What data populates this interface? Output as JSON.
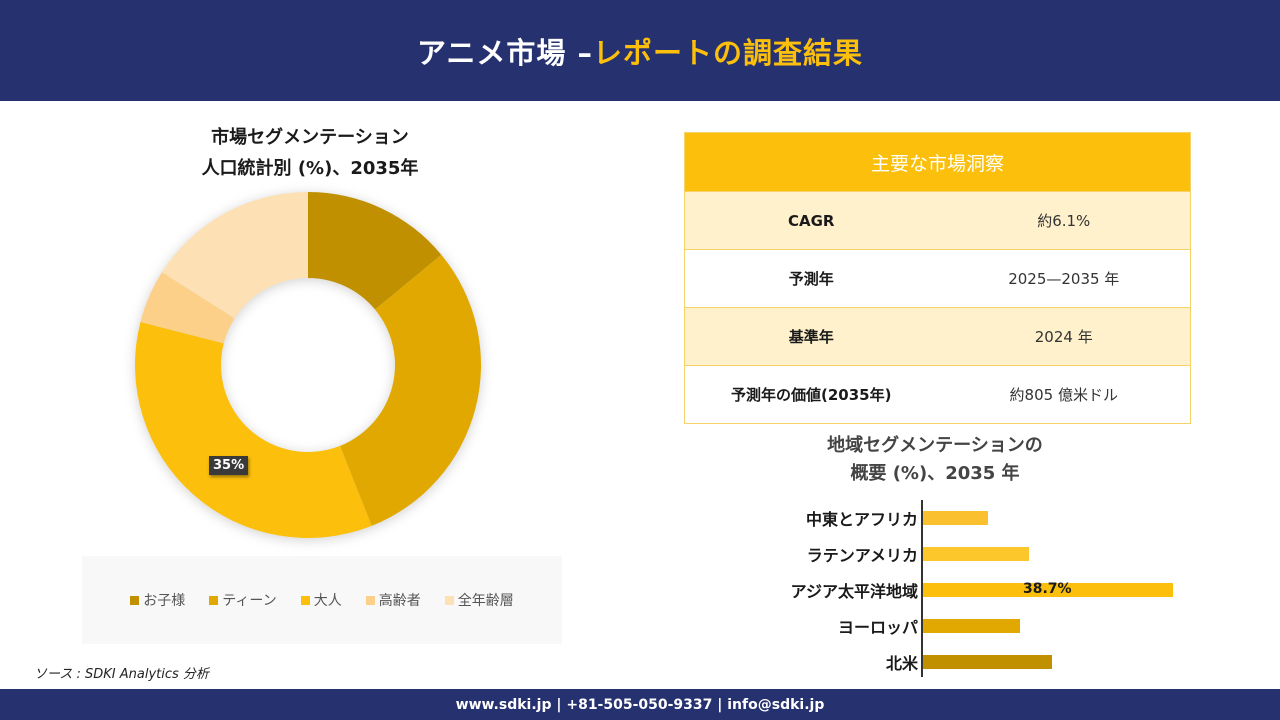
{
  "header": {
    "title_part1": "アニメ市場 –",
    "title_part2": "レポートの調査結果"
  },
  "donut": {
    "title_line1": "市場セグメンテーション",
    "title_line2": "人口統計別 (%)、2035年",
    "highlight_label": "35%"
  },
  "legend": {
    "items": [
      {
        "label": "お子様",
        "color": "#c09000"
      },
      {
        "label": "ティーン",
        "color": "#e0a800"
      },
      {
        "label": "大人",
        "color": "#fbbf0c"
      },
      {
        "label": "高齢者",
        "color": "#fdd08a"
      },
      {
        "label": "全年齢層",
        "color": "#fde0b3"
      }
    ]
  },
  "source": {
    "text": "ソース : SDKI Analytics 分析"
  },
  "insights": {
    "heading": "主要な市場洞察",
    "rows": [
      {
        "key": "CAGR",
        "value": "約6.1%"
      },
      {
        "key": "予測年",
        "value": "2025—2035 年"
      },
      {
        "key": "基準年",
        "value": "2024 年"
      },
      {
        "key": "予測年の価値(2035年)",
        "value": "約805 億米ドル"
      }
    ]
  },
  "regional": {
    "title_line1": "地域セグメンテーションの",
    "title_line2": "概要 (%)、2035 年",
    "highlight_label": "38.7%"
  },
  "footer": {
    "contact": "www.sdki.jp | +81-505-050-9337 | info@sdki.jp"
  },
  "chart_data": [
    {
      "type": "pie",
      "subtype": "donut",
      "title": "市場セグメンテーション 人口統計別 (%)、2035年",
      "categories": [
        "お子様",
        "ティーン",
        "大人",
        "高齢者",
        "全年齢層"
      ],
      "values": [
        14,
        30,
        35,
        5,
        16
      ],
      "colors": [
        "#c09000",
        "#e0a800",
        "#fbbf0c",
        "#fdd08a",
        "#fde0b3"
      ],
      "data_labels": {
        "大人": "35%"
      },
      "legend_position": "bottom"
    },
    {
      "type": "bar",
      "orientation": "horizontal",
      "title": "地域セグメンテーションの概要 (%)、2035 年",
      "categories": [
        "中東とアフリカ",
        "ラテンアメリカ",
        "アジア太平洋地域",
        "ヨーロッパ",
        "北米"
      ],
      "values": [
        10,
        16.4,
        38.7,
        15,
        20
      ],
      "colors": [
        "#fbc02d",
        "#fcc72a",
        "#fbbf0c",
        "#e0a800",
        "#c09000"
      ],
      "data_labels": {
        "アジア太平洋地域": "38.7%"
      },
      "xlabel": "",
      "ylabel": "",
      "grid": false
    }
  ]
}
